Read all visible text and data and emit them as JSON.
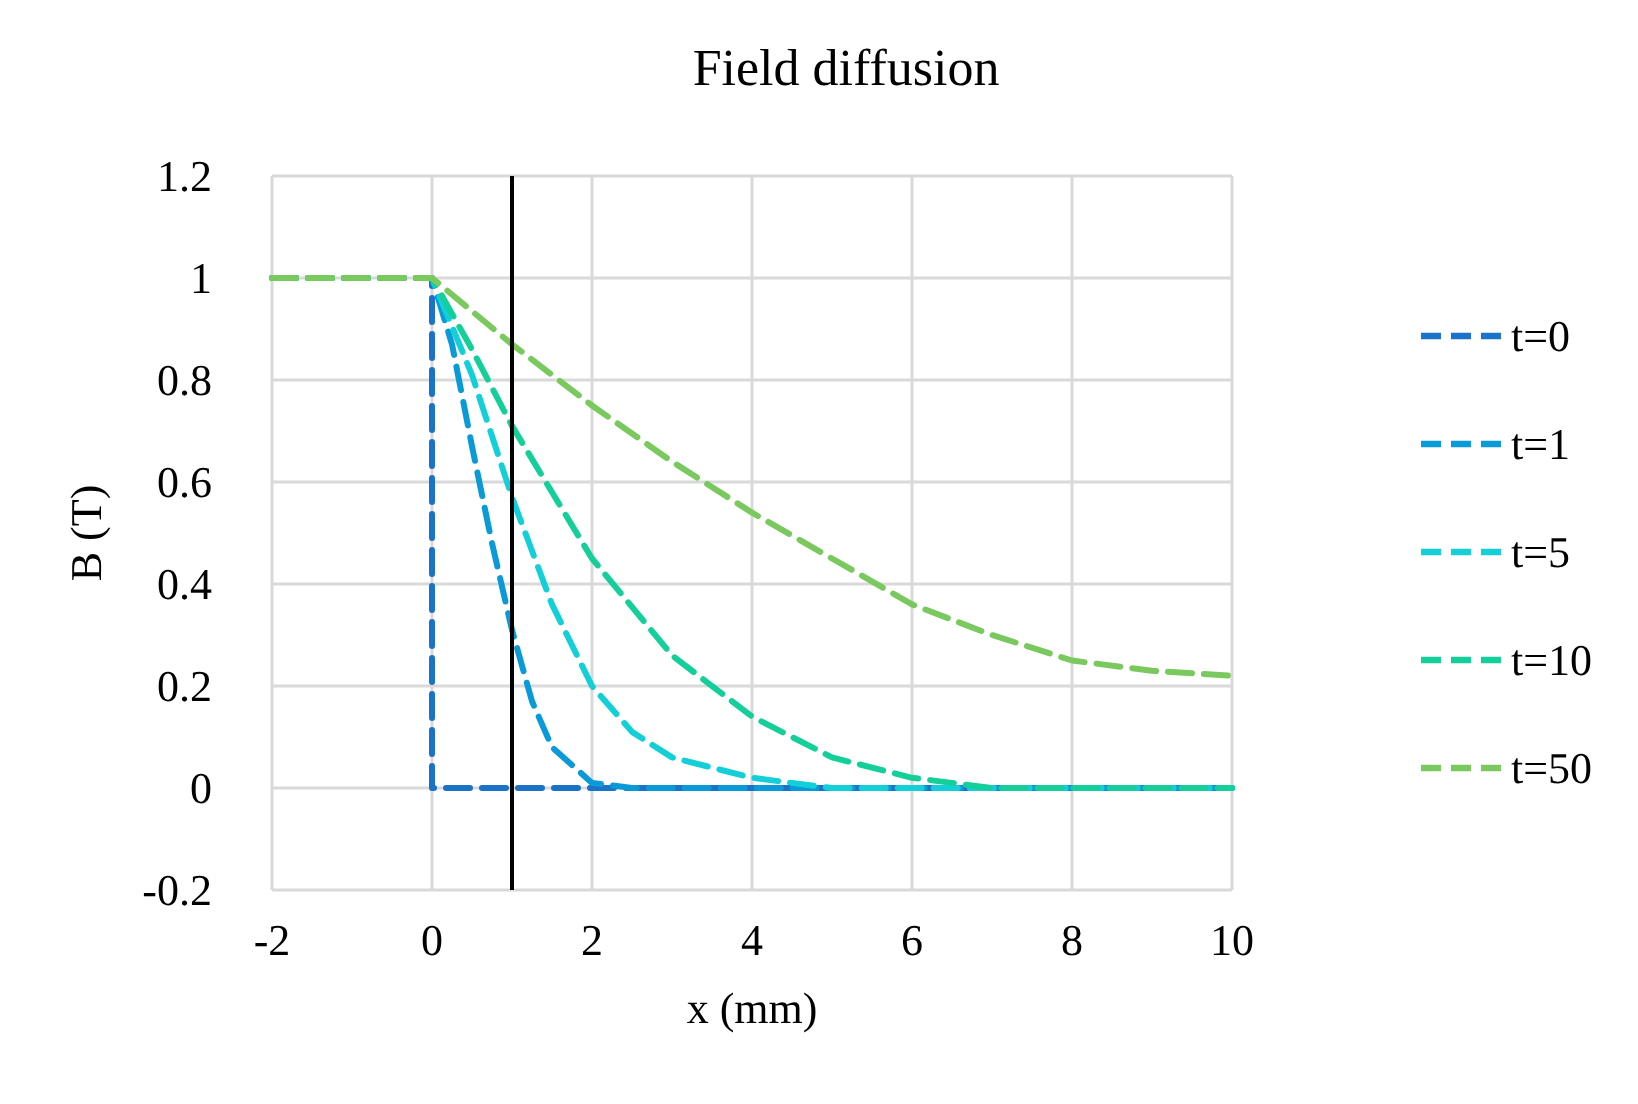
{
  "chart_data": {
    "type": "line",
    "title": "Field diffusion",
    "xlabel": "x (mm)",
    "ylabel": "B (T)",
    "xlim": [
      -2,
      10
    ],
    "xticks": [
      -2,
      0,
      2,
      4,
      6,
      8,
      10
    ],
    "ylim": [
      -0.2,
      1.2
    ],
    "yticks": [
      -0.2,
      0,
      0.2,
      0.4,
      0.6,
      0.8,
      1,
      1.2
    ],
    "grid": true,
    "legend": "right",
    "marker": "none",
    "line_style": "dashed",
    "ref_lines": [
      {
        "axis": "x",
        "value": 1,
        "color": "#000000"
      }
    ],
    "series": [
      {
        "name": "t=0",
        "color": "#1a73c9",
        "x": [
          -2,
          -1,
          0,
          0,
          2,
          4,
          6,
          8,
          10
        ],
        "values": [
          1,
          1,
          1,
          0,
          0,
          0,
          0,
          0,
          0
        ]
      },
      {
        "name": "t=1",
        "color": "#0a9ad8",
        "x": [
          -2,
          -1,
          0,
          0.25,
          0.5,
          0.75,
          1,
          1.25,
          1.5,
          2,
          2.5,
          3,
          4,
          6,
          8,
          10
        ],
        "values": [
          1,
          1,
          1,
          0.87,
          0.67,
          0.48,
          0.31,
          0.17,
          0.08,
          0.01,
          0,
          0,
          0,
          0,
          0,
          0
        ]
      },
      {
        "name": "t=5",
        "color": "#12cfd8",
        "x": [
          -2,
          -1,
          0,
          0.5,
          1,
          1.5,
          2,
          2.5,
          3,
          3.5,
          4,
          5,
          6,
          8,
          10
        ],
        "values": [
          1,
          1,
          1,
          0.81,
          0.57,
          0.36,
          0.2,
          0.11,
          0.06,
          0.04,
          0.02,
          0,
          0,
          0,
          0
        ]
      },
      {
        "name": "t=10",
        "color": "#14cf9a",
        "x": [
          -2,
          -1,
          0,
          0.5,
          1,
          2,
          3,
          4,
          5,
          6,
          7,
          8,
          10
        ],
        "values": [
          1,
          1,
          1,
          0.86,
          0.71,
          0.45,
          0.26,
          0.14,
          0.06,
          0.02,
          0,
          0,
          0
        ]
      },
      {
        "name": "t=50",
        "color": "#79c95e",
        "x": [
          -2,
          -1,
          0,
          1,
          2,
          3,
          4,
          5,
          6,
          7,
          8,
          9,
          10
        ],
        "values": [
          1,
          1,
          1,
          0.87,
          0.75,
          0.64,
          0.54,
          0.45,
          0.36,
          0.3,
          0.25,
          0.23,
          0.22
        ]
      }
    ]
  }
}
